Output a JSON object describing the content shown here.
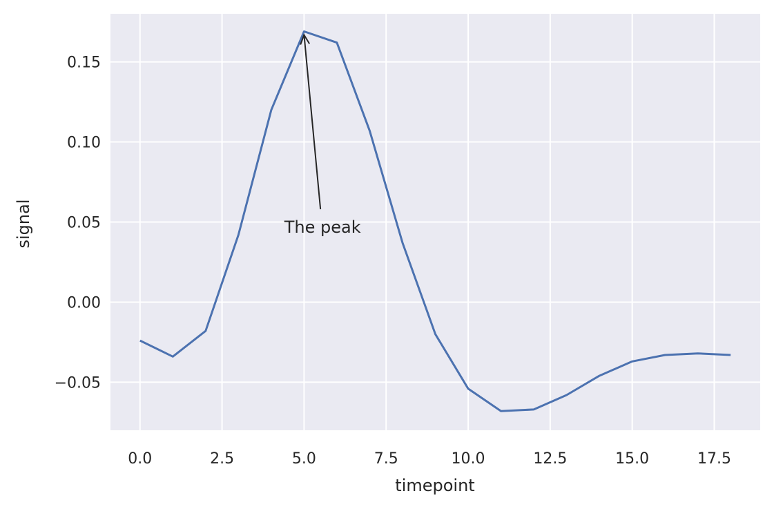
{
  "chart_data": {
    "type": "line",
    "xlabel": "timepoint",
    "ylabel": "signal",
    "xlim": [
      -0.9,
      18.9
    ],
    "ylim": [
      -0.08,
      0.18
    ],
    "x_ticks": [
      0.0,
      2.5,
      5.0,
      7.5,
      10.0,
      12.5,
      15.0,
      17.5
    ],
    "x_tick_labels": [
      "0.0",
      "2.5",
      "5.0",
      "7.5",
      "10.0",
      "12.5",
      "15.0",
      "17.5"
    ],
    "y_ticks": [
      -0.05,
      0.0,
      0.05,
      0.1,
      0.15
    ],
    "y_tick_labels": [
      "−0.05",
      "0.00",
      "0.05",
      "0.10",
      "0.15"
    ],
    "grid": true,
    "background": "#eaeaf2",
    "line_color": "#4c72b0",
    "series": [
      {
        "x": [
          0,
          1,
          2,
          3,
          4,
          5,
          6,
          7,
          8,
          9,
          10,
          11,
          12,
          13,
          14,
          15,
          16,
          17,
          18
        ],
        "y": [
          -0.024,
          -0.034,
          -0.018,
          0.042,
          0.12,
          0.169,
          0.162,
          0.107,
          0.037,
          -0.02,
          -0.054,
          -0.068,
          -0.067,
          -0.058,
          -0.046,
          -0.037,
          -0.033,
          -0.032,
          -0.033
        ]
      }
    ],
    "annotations": [
      {
        "text": "The peak",
        "xy": [
          5.0,
          0.169
        ],
        "xytext": [
          5.5,
          0.058
        ]
      }
    ]
  }
}
